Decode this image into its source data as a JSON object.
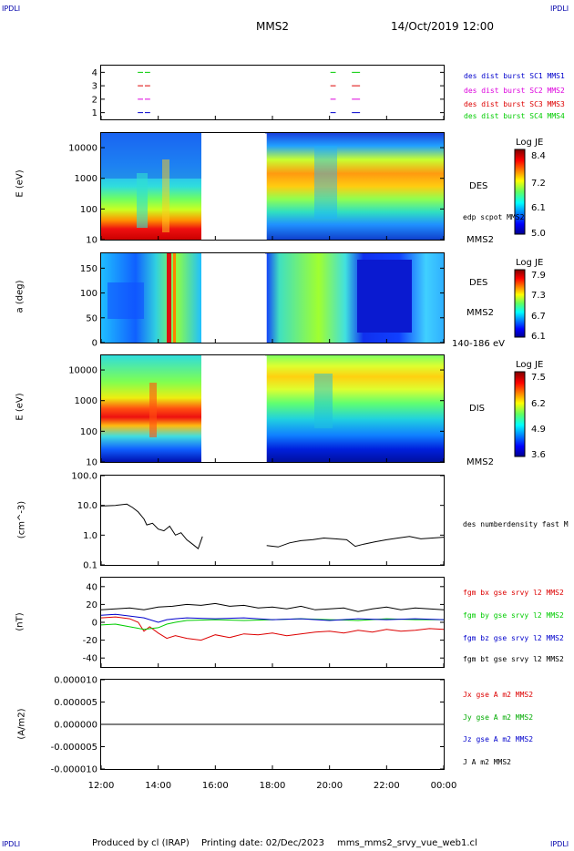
{
  "corners": {
    "tl": "IPDLI",
    "tr": "IPDLI",
    "bl": "IPDLI",
    "br": "IPDLI"
  },
  "header": {
    "spacecraft": "MMS2",
    "datetime": "14/Oct/2019 12:00"
  },
  "footer": {
    "produced": "Produced by cl (IRAP)",
    "printing": "Printing date: 02/Dec/2023",
    "file": "mms_mms2_srvy_vue_web1.cl"
  },
  "colors": {
    "red": "#dd0000",
    "green": "#00cc00",
    "blue": "#0000cc",
    "magenta": "#dd00dd",
    "black": "#000000"
  },
  "chart_data": [
    {
      "type": "line",
      "panel": "availability",
      "ylim": [
        0.5,
        4.5
      ],
      "yticks": [
        "1",
        "2",
        "3",
        "4"
      ],
      "series": [
        {
          "name": "des dist burst SC1 MMS1",
          "level": 1,
          "intervals": [
            [
              13.25,
              13.5
            ],
            [
              13.5,
              13.75
            ],
            [
              20.0,
              20.25
            ],
            [
              20.75,
              21.1
            ]
          ]
        },
        {
          "name": "des dist burst SC2 MMS2",
          "level": 2,
          "intervals": [
            [
              13.25,
              13.5
            ],
            [
              13.5,
              13.75
            ],
            [
              20.0,
              20.25
            ],
            [
              20.75,
              21.1
            ]
          ]
        },
        {
          "name": "des dist burst SC3 MMS3",
          "level": 3,
          "intervals": [
            [
              13.25,
              13.5
            ],
            [
              13.5,
              13.75
            ],
            [
              20.0,
              20.25
            ],
            [
              20.75,
              21.1
            ]
          ]
        },
        {
          "name": "des dist burst SC4 MMS4",
          "level": 4,
          "intervals": [
            [
              13.25,
              13.5
            ],
            [
              13.5,
              13.75
            ],
            [
              20.0,
              20.25
            ],
            [
              20.75,
              21.1
            ]
          ]
        }
      ]
    },
    {
      "type": "heatmap",
      "panel": "des_energy",
      "ylabel": "E (eV)",
      "ylim": [
        10,
        30000
      ],
      "log_y": true,
      "yticks": [
        "10",
        "100",
        "1000",
        "10000"
      ],
      "data_gap": [
        15.55,
        17.8
      ],
      "colorbar": {
        "title": "Log JE",
        "ticks": [
          "8.4",
          "7.2",
          "6.1",
          "5.0"
        ],
        "range": [
          5.0,
          8.4
        ]
      },
      "labels": [
        "DES",
        "edp scpot MMS2",
        "MMS2"
      ]
    },
    {
      "type": "heatmap",
      "panel": "des_pitch",
      "ylabel": "a (deg)",
      "ylim": [
        0,
        180
      ],
      "yticks": [
        "0",
        "50",
        "100",
        "150"
      ],
      "data_gap": [
        15.55,
        17.8
      ],
      "colorbar": {
        "title": "Log JE",
        "ticks": [
          "7.9",
          "7.3",
          "6.7",
          "6.1"
        ],
        "range": [
          6.1,
          7.9
        ]
      },
      "labels": [
        "DES",
        "MMS2",
        "140-186 eV"
      ]
    },
    {
      "type": "heatmap",
      "panel": "dis_energy",
      "ylabel": "E (eV)",
      "ylim": [
        10,
        30000
      ],
      "log_y": true,
      "yticks": [
        "10",
        "100",
        "1000",
        "10000"
      ],
      "data_gap": [
        15.55,
        17.8
      ],
      "colorbar": {
        "title": "Log JE",
        "ticks": [
          "7.5",
          "6.2",
          "4.9",
          "3.6"
        ],
        "range": [
          3.6,
          7.5
        ]
      },
      "labels": [
        "DIS",
        "MMS2"
      ]
    },
    {
      "type": "line",
      "panel": "density",
      "ylabel": "(cm^-3)",
      "ylim": [
        0.1,
        100
      ],
      "log_y": true,
      "yticks": [
        "0.1",
        "1.0",
        "10.0",
        "100.0"
      ],
      "series": [
        {
          "name": "des numberdensity fast M",
          "x": [
            12.0,
            12.5,
            12.9,
            13.1,
            13.3,
            13.5,
            13.6,
            13.8,
            14.0,
            14.2,
            14.4,
            14.6,
            14.8,
            15.0,
            15.2,
            15.4,
            15.55,
            17.8,
            18.2,
            18.6,
            19.0,
            19.4,
            19.8,
            20.2,
            20.6,
            20.9,
            21.2,
            21.6,
            22.0,
            22.4,
            22.8,
            23.2,
            23.6,
            24.0
          ],
          "y": [
            9.5,
            10.0,
            11.0,
            8.5,
            6.0,
            3.5,
            2.2,
            2.5,
            1.6,
            1.4,
            2.0,
            1.0,
            1.2,
            0.7,
            0.5,
            0.35,
            0.9,
            0.45,
            0.4,
            0.55,
            0.65,
            0.7,
            0.8,
            0.75,
            0.7,
            0.42,
            0.5,
            0.6,
            0.7,
            0.8,
            0.9,
            0.75,
            0.8,
            0.85
          ]
        }
      ]
    },
    {
      "type": "line",
      "panel": "magnetic_field",
      "ylabel": "(nT)",
      "ylim": [
        -50,
        50
      ],
      "yticks": [
        "-40",
        "-20",
        "0",
        "20",
        "40"
      ],
      "series": [
        {
          "name": "fgm bx gse srvy l2 MMS2",
          "x": [
            12.0,
            12.5,
            13.0,
            13.3,
            13.5,
            13.7,
            14.0,
            14.3,
            14.6,
            15.0,
            15.5,
            16.0,
            16.5,
            17.0,
            17.5,
            18.0,
            18.5,
            19.0,
            19.5,
            20.0,
            20.5,
            21.0,
            21.5,
            22.0,
            22.5,
            23.0,
            23.5,
            24.0
          ],
          "y": [
            5,
            6,
            4,
            0,
            -10,
            -5,
            -12,
            -18,
            -15,
            -18,
            -20,
            -14,
            -17,
            -13,
            -14,
            -12,
            -15,
            -13,
            -11,
            -10,
            -12,
            -9,
            -11,
            -8,
            -10,
            -9,
            -7,
            -8
          ]
        },
        {
          "name": "fgm by gse srvy l2 MMS2",
          "x": [
            12.0,
            12.5,
            13.0,
            13.5,
            14.0,
            14.3,
            14.6,
            15.0,
            16.0,
            17.0,
            18.0,
            19.0,
            20.0,
            21.0,
            22.0,
            23.0,
            24.0
          ],
          "y": [
            -3,
            -2,
            -5,
            -8,
            -6,
            -2,
            0,
            2,
            3,
            2,
            3,
            4,
            3,
            2,
            4,
            3,
            3
          ]
        },
        {
          "name": "fgm bz gse srvy l2 MMS2",
          "x": [
            12.0,
            12.5,
            13.0,
            13.5,
            14.0,
            14.3,
            14.6,
            15.0,
            16.0,
            17.0,
            18.0,
            19.0,
            20.0,
            21.0,
            22.0,
            23.0,
            24.0
          ],
          "y": [
            8,
            9,
            7,
            5,
            0,
            3,
            4,
            5,
            4,
            5,
            3,
            4,
            2,
            4,
            3,
            4,
            3
          ]
        },
        {
          "name": "fgm bt gse srvy l2 MMS2",
          "x": [
            12.0,
            12.5,
            13.0,
            13.5,
            14.0,
            14.5,
            15.0,
            15.5,
            16.0,
            16.5,
            17.0,
            17.5,
            18.0,
            18.5,
            19.0,
            19.5,
            20.0,
            20.5,
            21.0,
            21.5,
            22.0,
            22.5,
            23.0,
            23.5,
            24.0
          ],
          "y": [
            14,
            15,
            16,
            14,
            17,
            18,
            20,
            19,
            21,
            18,
            19,
            16,
            17,
            15,
            18,
            14,
            15,
            16,
            12,
            15,
            17,
            14,
            16,
            15,
            14
          ]
        }
      ]
    },
    {
      "type": "line",
      "panel": "current_density",
      "ylabel": "(A/m2)",
      "ylim": [
        -0.0001,
        0.0001
      ],
      "yticks": [
        "-0.000010",
        "-0.000005",
        "0.000000",
        "0.000005",
        "0.000010"
      ],
      "xticks": [
        "12:00",
        "14:00",
        "16:00",
        "18:00",
        "20:00",
        "22:00",
        "00:00"
      ],
      "series": [
        {
          "name": "Jx gse A m2 MMS2",
          "x": [
            12,
            24
          ],
          "y": [
            0,
            0
          ]
        },
        {
          "name": "Jy gse A m2 MMS2",
          "x": [
            12,
            24
          ],
          "y": [
            0,
            0
          ]
        },
        {
          "name": "Jz gse A m2 MMS2",
          "x": [
            12,
            24
          ],
          "y": [
            0,
            0
          ]
        },
        {
          "name": "J A m2 MMS2",
          "x": [
            12,
            24
          ],
          "y": [
            0,
            0
          ]
        }
      ]
    }
  ]
}
